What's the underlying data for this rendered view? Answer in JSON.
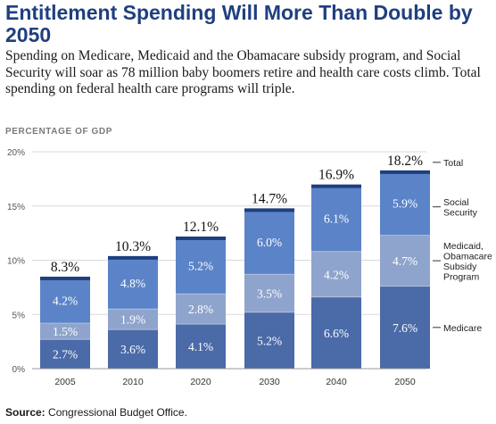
{
  "title": "Entitlement Spending Will More Than Double by 2050",
  "subtitle": "Spending on Medicare, Medicaid and the Obamacare subsidy program, and Social Security will soar as 78 million baby boomers retire and health care costs climb. Total spending on federal health care programs will triple.",
  "unit_label": "PERCENTAGE OF GDP",
  "source": {
    "label": "Source:",
    "text": "Congressional Budget Office."
  },
  "colors": {
    "medicare": "#4a6aa8",
    "medicaid": "#8fa4cc",
    "social_security": "#5b84c8",
    "cap": "#1e3f7e",
    "grid": "#d9d9d9",
    "axis_text": "#555555"
  },
  "chart_data": {
    "type": "bar",
    "stacked": true,
    "categories": [
      "2005",
      "2010",
      "2020",
      "2030",
      "2040",
      "2050"
    ],
    "series": [
      {
        "name": "Medicare",
        "values": [
          2.7,
          3.6,
          4.1,
          5.2,
          6.6,
          7.6
        ],
        "labels": [
          "2.7%",
          "3.6%",
          "4.1%",
          "5.2%",
          "6.6%",
          "7.6%"
        ]
      },
      {
        "name": "Medicaid, Obamacare Subsidy Program",
        "values": [
          1.5,
          1.9,
          2.8,
          3.5,
          4.2,
          4.7
        ],
        "labels": [
          "1.5%",
          "1.9%",
          "2.8%",
          "3.5%",
          "4.2%",
          "4.7%"
        ]
      },
      {
        "name": "Social Security",
        "values": [
          4.2,
          4.8,
          5.2,
          6.0,
          6.1,
          5.9
        ],
        "labels": [
          "4.2%",
          "4.8%",
          "5.2%",
          "6.0%",
          "6.1%",
          "5.9%"
        ]
      }
    ],
    "totals": [
      8.3,
      10.3,
      12.1,
      14.7,
      16.9,
      18.2
    ],
    "total_labels": [
      "8.3%",
      "10.3%",
      "12.1%",
      "14.7%",
      "16.9%",
      "18.2%"
    ],
    "total_legend": "Total",
    "legend_lines": {
      "social_security": [
        "Social",
        "Security"
      ],
      "medicaid": [
        "Medicaid,",
        "Obamacare",
        "Subsidy",
        "Program"
      ],
      "medicare": [
        "Medicare"
      ]
    },
    "y_ticks": [
      0,
      5,
      10,
      15,
      20
    ],
    "y_tick_labels": [
      "0%",
      "5%",
      "10%",
      "15%",
      "20%"
    ],
    "ylim": [
      0,
      20
    ],
    "grid": true,
    "legend_position": "right"
  }
}
